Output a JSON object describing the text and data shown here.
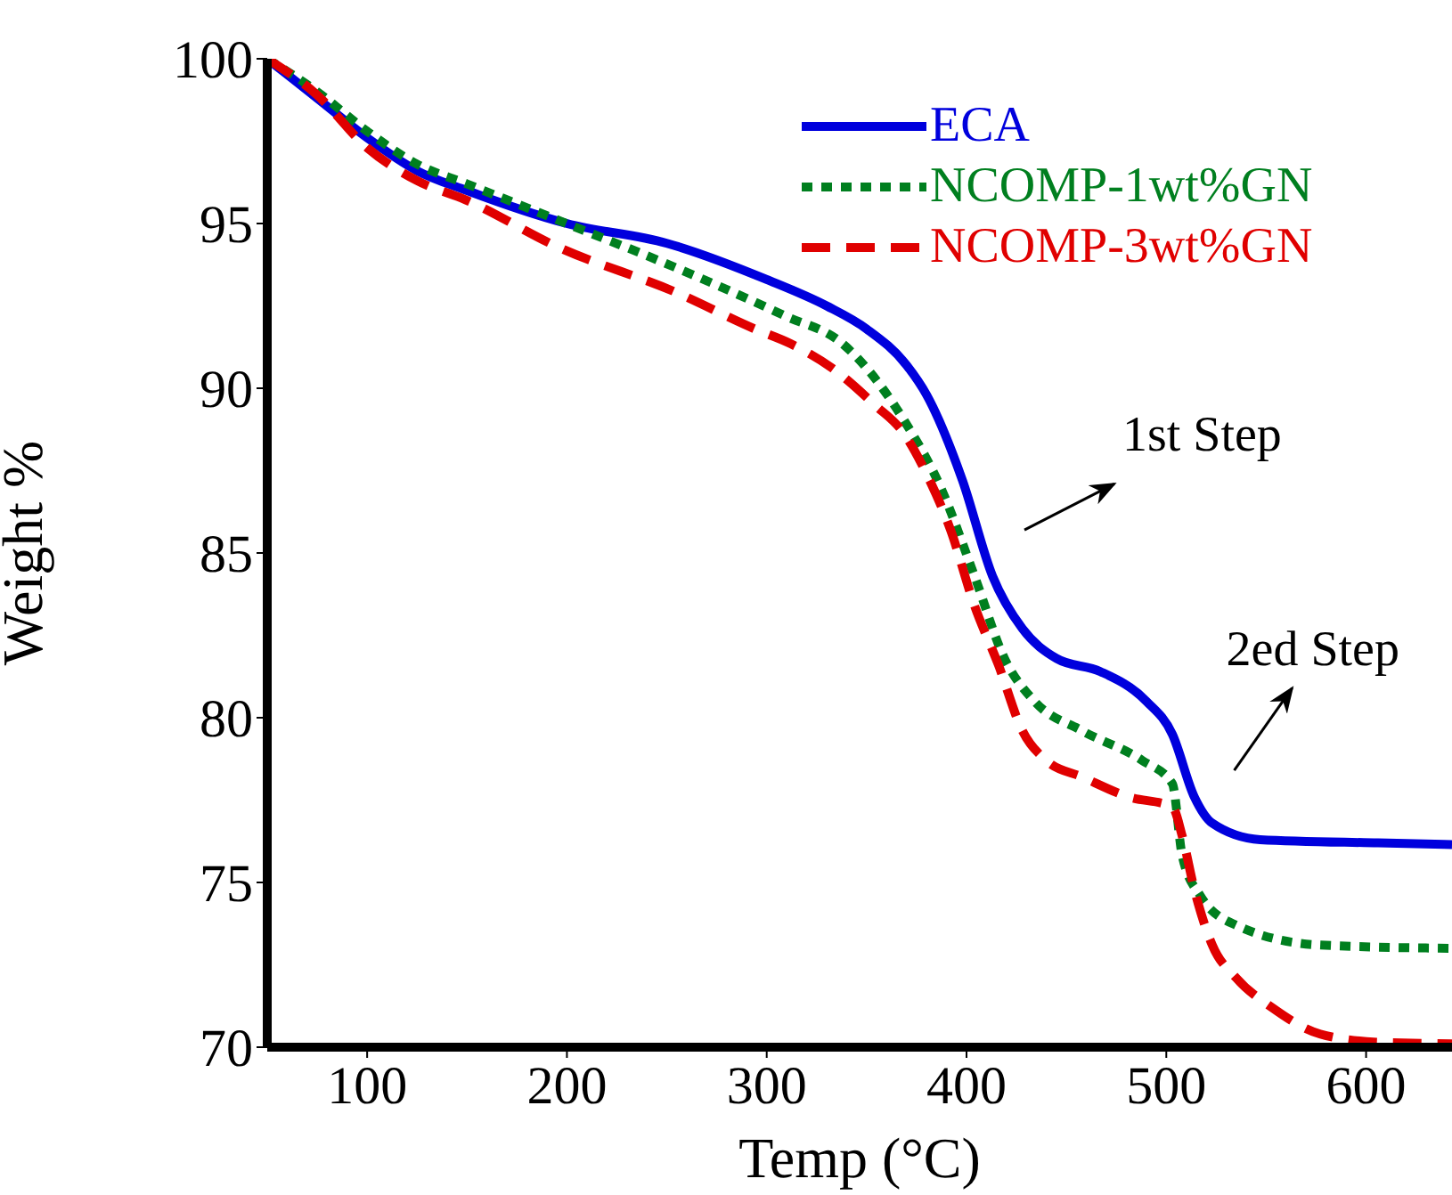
{
  "chart_data": {
    "type": "line",
    "xlabel": "Temp (°C)",
    "ylabel": "Weight %",
    "xlim": [
      50,
      643
    ],
    "xticks": [
      100,
      200,
      300,
      400,
      500,
      600
    ],
    "ylim": [
      70,
      100
    ],
    "yticks": [
      70,
      75,
      80,
      85,
      90,
      95,
      100
    ],
    "grid": false,
    "legend": "top right",
    "marker": "none",
    "annotations": [
      "1st Step",
      "2ed Step"
    ],
    "series": [
      {
        "name": "ECA",
        "color": "#0000dd",
        "line_style": "solid",
        "x": [
          50,
          75,
          100,
          125,
          150,
          200,
          250,
          300,
          330,
          350,
          370,
          380,
          398,
          413,
          428,
          445,
          467,
          490,
          503,
          514,
          523,
          547,
          606,
          643
        ],
        "values": [
          100,
          98.8,
          97.6,
          96.6,
          96.0,
          95.0,
          94.4,
          93.3,
          92.5,
          91.8,
          90.7,
          89.8,
          87.2,
          84.3,
          82.7,
          81.8,
          81.4,
          80.5,
          79.5,
          77.6,
          76.8,
          76.3,
          76.2,
          76.15
        ]
      },
      {
        "name": "NCOMP-1wt%GN",
        "color": "#007f1f",
        "line_style": "dotted",
        "x": [
          50,
          75,
          100,
          125,
          150,
          208,
          249,
          309,
          338,
          369,
          387,
          404,
          419,
          434,
          458,
          488,
          503,
          508,
          517,
          535,
          577,
          643
        ],
        "values": [
          100,
          99.0,
          97.8,
          96.8,
          96.2,
          94.8,
          93.8,
          92.2,
          91.35,
          89.0,
          87.0,
          84.3,
          81.8,
          80.5,
          79.6,
          78.7,
          78.0,
          75.8,
          74.6,
          73.7,
          73.1,
          73.0
        ]
      },
      {
        "name": "NCOMP-3wt%GN",
        "color": "#e00000",
        "line_style": "dashed",
        "x": [
          50,
          75,
          100,
          125,
          150,
          195,
          255,
          294,
          312,
          333,
          354,
          369,
          380,
          392,
          404,
          416,
          428,
          440,
          458,
          481,
          503,
          508,
          514,
          523,
          535,
          553,
          577,
          606,
          643
        ],
        "values": [
          100,
          98.9,
          97.3,
          96.3,
          95.7,
          94.3,
          92.9,
          91.8,
          91.35,
          90.6,
          89.5,
          88.6,
          87.4,
          85.7,
          83.4,
          81.6,
          79.6,
          78.7,
          78.2,
          77.6,
          77.3,
          76.4,
          74.8,
          73.1,
          72.1,
          71.2,
          70.4,
          70.15,
          70.1
        ]
      }
    ]
  }
}
